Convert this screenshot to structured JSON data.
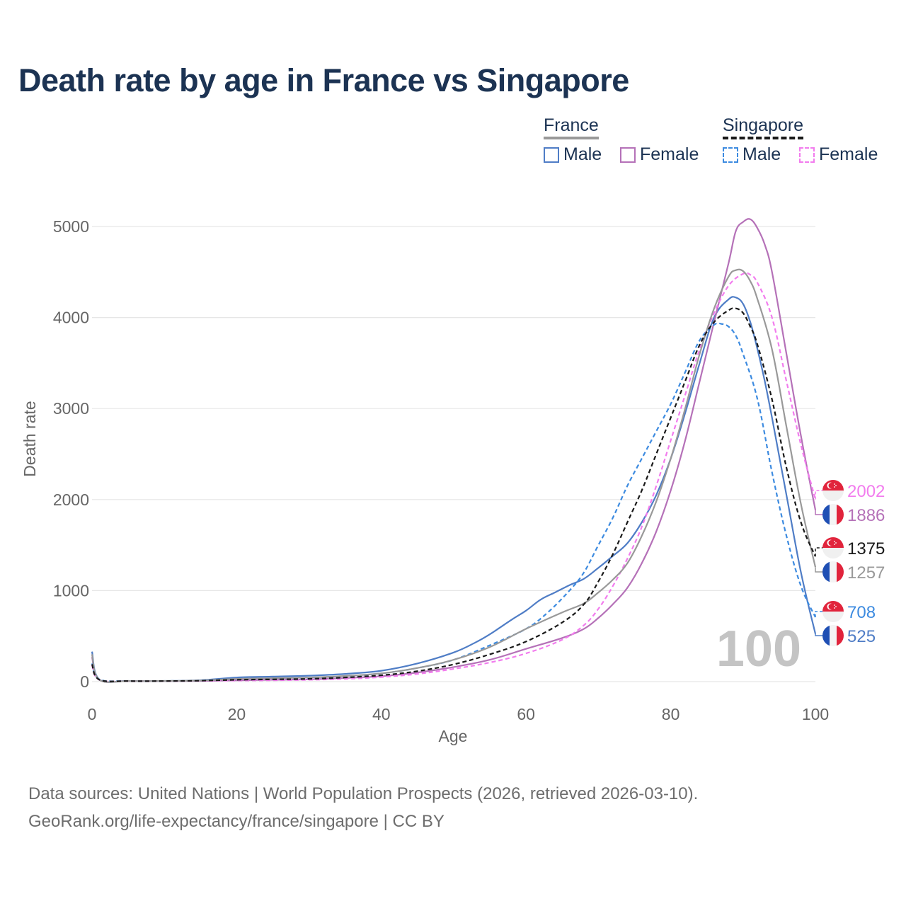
{
  "title": "Death rate by age in France vs Singapore",
  "legend": {
    "groups": [
      {
        "name": "France",
        "line_color": "#999999",
        "line_style": "solid",
        "items": [
          {
            "label": "Male",
            "color": "#4f7dc6",
            "style": "solid"
          },
          {
            "label": "Female",
            "color": "#b571b8",
            "style": "solid"
          }
        ]
      },
      {
        "name": "Singapore",
        "line_color": "#1a1a1a",
        "line_style": "dashed",
        "items": [
          {
            "label": "Male",
            "color": "#3d8be0",
            "style": "dashed"
          },
          {
            "label": "Female",
            "color": "#f27cee",
            "style": "dashed"
          }
        ]
      }
    ]
  },
  "watermark": "100",
  "footer": {
    "line1": "Data sources: United Nations | World Population Prospects (2026, retrieved 2026-03-10).",
    "line2": "GeoRank.org/life-expectancy/france/singapore | CC BY"
  },
  "chart_data": {
    "type": "line",
    "title": "Death rate by age in France vs Singapore",
    "xlabel": "Age",
    "ylabel": "Death rate",
    "xlim": [
      0,
      100
    ],
    "ylim": [
      0,
      5000
    ],
    "xticks": [
      0,
      20,
      40,
      60,
      80,
      100
    ],
    "yticks": [
      0,
      1000,
      2000,
      3000,
      4000,
      5000
    ],
    "grid": true,
    "series": [
      {
        "name": "France Male",
        "country": "France",
        "color": "#4f7dc6",
        "dash": "solid",
        "end_label": "525",
        "points": [
          [
            0,
            330
          ],
          [
            1,
            25
          ],
          [
            5,
            8
          ],
          [
            10,
            8
          ],
          [
            15,
            15
          ],
          [
            20,
            45
          ],
          [
            25,
            55
          ],
          [
            30,
            65
          ],
          [
            35,
            85
          ],
          [
            40,
            120
          ],
          [
            45,
            200
          ],
          [
            50,
            320
          ],
          [
            53,
            430
          ],
          [
            55,
            520
          ],
          [
            58,
            680
          ],
          [
            60,
            780
          ],
          [
            62,
            900
          ],
          [
            64,
            980
          ],
          [
            66,
            1060
          ],
          [
            68,
            1130
          ],
          [
            70,
            1250
          ],
          [
            72,
            1380
          ],
          [
            74,
            1520
          ],
          [
            76,
            1750
          ],
          [
            78,
            2050
          ],
          [
            80,
            2450
          ],
          [
            82,
            2950
          ],
          [
            84,
            3500
          ],
          [
            86,
            4000
          ],
          [
            88,
            4200
          ],
          [
            89,
            4220
          ],
          [
            90,
            4150
          ],
          [
            91,
            3950
          ],
          [
            92,
            3650
          ],
          [
            93,
            3300
          ],
          [
            94,
            2900
          ],
          [
            96,
            2050
          ],
          [
            98,
            1200
          ],
          [
            100,
            525
          ]
        ]
      },
      {
        "name": "France Female",
        "country": "France",
        "color": "#b571b8",
        "dash": "solid",
        "end_label": "1886",
        "points": [
          [
            0,
            270
          ],
          [
            1,
            20
          ],
          [
            5,
            6
          ],
          [
            10,
            6
          ],
          [
            15,
            8
          ],
          [
            20,
            15
          ],
          [
            25,
            20
          ],
          [
            30,
            25
          ],
          [
            35,
            40
          ],
          [
            40,
            60
          ],
          [
            45,
            100
          ],
          [
            50,
            160
          ],
          [
            55,
            240
          ],
          [
            60,
            360
          ],
          [
            65,
            480
          ],
          [
            68,
            580
          ],
          [
            70,
            700
          ],
          [
            72,
            850
          ],
          [
            74,
            1030
          ],
          [
            76,
            1300
          ],
          [
            78,
            1650
          ],
          [
            80,
            2100
          ],
          [
            82,
            2650
          ],
          [
            84,
            3300
          ],
          [
            86,
            3950
          ],
          [
            88,
            4600
          ],
          [
            89,
            4950
          ],
          [
            90,
            5050
          ],
          [
            91,
            5080
          ],
          [
            92,
            4980
          ],
          [
            93,
            4800
          ],
          [
            94,
            4500
          ],
          [
            96,
            3600
          ],
          [
            98,
            2700
          ],
          [
            100,
            1886
          ]
        ]
      },
      {
        "name": "Singapore Male",
        "country": "Singapore",
        "color": "#3d8be0",
        "dash": "dashed",
        "end_label": "708",
        "points": [
          [
            0,
            200
          ],
          [
            1,
            25
          ],
          [
            5,
            6
          ],
          [
            10,
            6
          ],
          [
            15,
            12
          ],
          [
            20,
            30
          ],
          [
            25,
            35
          ],
          [
            30,
            40
          ],
          [
            35,
            60
          ],
          [
            40,
            90
          ],
          [
            45,
            150
          ],
          [
            50,
            240
          ],
          [
            55,
            400
          ],
          [
            60,
            580
          ],
          [
            63,
            760
          ],
          [
            66,
            1000
          ],
          [
            68,
            1200
          ],
          [
            70,
            1500
          ],
          [
            72,
            1800
          ],
          [
            74,
            2150
          ],
          [
            76,
            2450
          ],
          [
            78,
            2750
          ],
          [
            80,
            3050
          ],
          [
            82,
            3400
          ],
          [
            84,
            3750
          ],
          [
            86,
            3920
          ],
          [
            87,
            3930
          ],
          [
            88,
            3900
          ],
          [
            89,
            3800
          ],
          [
            90,
            3600
          ],
          [
            92,
            3100
          ],
          [
            94,
            2300
          ],
          [
            96,
            1600
          ],
          [
            98,
            1050
          ],
          [
            100,
            708
          ]
        ]
      },
      {
        "name": "Singapore Female",
        "country": "Singapore",
        "color": "#f27cee",
        "dash": "dashed",
        "end_label": "2002",
        "points": [
          [
            0,
            180
          ],
          [
            1,
            20
          ],
          [
            5,
            5
          ],
          [
            10,
            5
          ],
          [
            15,
            8
          ],
          [
            20,
            12
          ],
          [
            25,
            15
          ],
          [
            30,
            20
          ],
          [
            35,
            30
          ],
          [
            40,
            50
          ],
          [
            45,
            85
          ],
          [
            50,
            140
          ],
          [
            55,
            210
          ],
          [
            60,
            310
          ],
          [
            65,
            460
          ],
          [
            68,
            620
          ],
          [
            70,
            800
          ],
          [
            72,
            1050
          ],
          [
            74,
            1350
          ],
          [
            76,
            1700
          ],
          [
            78,
            2150
          ],
          [
            80,
            2650
          ],
          [
            82,
            3150
          ],
          [
            84,
            3650
          ],
          [
            86,
            4050
          ],
          [
            88,
            4350
          ],
          [
            90,
            4480
          ],
          [
            91,
            4470
          ],
          [
            92,
            4380
          ],
          [
            94,
            4000
          ],
          [
            96,
            3300
          ],
          [
            98,
            2600
          ],
          [
            100,
            2002
          ]
        ]
      },
      {
        "name": "France Total",
        "country": "France",
        "color": "#999999",
        "dash": "solid",
        "end_label": "1257",
        "points": [
          [
            0,
            300
          ],
          [
            1,
            22
          ],
          [
            5,
            7
          ],
          [
            10,
            7
          ],
          [
            15,
            12
          ],
          [
            20,
            30
          ],
          [
            25,
            38
          ],
          [
            30,
            45
          ],
          [
            35,
            62
          ],
          [
            40,
            90
          ],
          [
            45,
            150
          ],
          [
            50,
            240
          ],
          [
            55,
            380
          ],
          [
            60,
            580
          ],
          [
            65,
            760
          ],
          [
            68,
            860
          ],
          [
            70,
            980
          ],
          [
            72,
            1120
          ],
          [
            74,
            1300
          ],
          [
            76,
            1600
          ],
          [
            78,
            1980
          ],
          [
            80,
            2450
          ],
          [
            82,
            3000
          ],
          [
            84,
            3600
          ],
          [
            86,
            4100
          ],
          [
            88,
            4450
          ],
          [
            89,
            4520
          ],
          [
            90,
            4510
          ],
          [
            91,
            4400
          ],
          [
            92,
            4200
          ],
          [
            94,
            3650
          ],
          [
            96,
            2800
          ],
          [
            98,
            1950
          ],
          [
            100,
            1257
          ]
        ]
      },
      {
        "name": "Singapore Total",
        "country": "Singapore",
        "color": "#1a1a1a",
        "dash": "dashed",
        "end_label": "1375",
        "points": [
          [
            0,
            190
          ],
          [
            1,
            22
          ],
          [
            5,
            6
          ],
          [
            10,
            6
          ],
          [
            15,
            10
          ],
          [
            20,
            20
          ],
          [
            25,
            25
          ],
          [
            30,
            30
          ],
          [
            35,
            45
          ],
          [
            40,
            70
          ],
          [
            45,
            115
          ],
          [
            50,
            190
          ],
          [
            55,
            300
          ],
          [
            60,
            440
          ],
          [
            65,
            650
          ],
          [
            68,
            850
          ],
          [
            70,
            1100
          ],
          [
            72,
            1400
          ],
          [
            74,
            1750
          ],
          [
            76,
            2100
          ],
          [
            78,
            2500
          ],
          [
            80,
            2900
          ],
          [
            82,
            3300
          ],
          [
            84,
            3700
          ],
          [
            86,
            3950
          ],
          [
            88,
            4080
          ],
          [
            89,
            4100
          ],
          [
            90,
            4050
          ],
          [
            91,
            3900
          ],
          [
            92,
            3700
          ],
          [
            94,
            3100
          ],
          [
            96,
            2350
          ],
          [
            98,
            1750
          ],
          [
            100,
            1375
          ]
        ]
      }
    ],
    "end_labels": [
      {
        "value": "2002",
        "country": "Singapore",
        "color": "#f27cee"
      },
      {
        "value": "1886",
        "country": "France",
        "color": "#b571b8"
      },
      {
        "value": "1375",
        "country": "Singapore",
        "color": "#1a1a1a"
      },
      {
        "value": "1257",
        "country": "France",
        "color": "#999999"
      },
      {
        "value": "708",
        "country": "Singapore",
        "color": "#3d8be0"
      },
      {
        "value": "525",
        "country": "France",
        "color": "#4f7dc6"
      }
    ]
  }
}
